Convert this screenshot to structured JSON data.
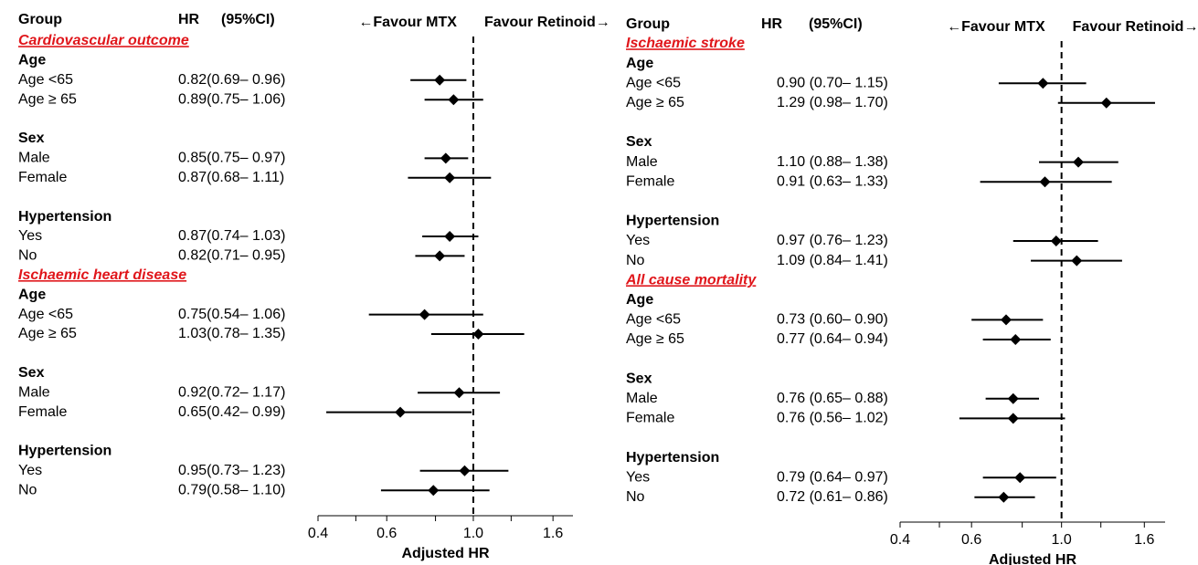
{
  "chart_data": [
    {
      "type": "forest",
      "headers": {
        "group": "Group",
        "hr": "HR",
        "ci": "(95%CI)"
      },
      "favour_left": "←Favour MTX",
      "favour_right": "Favour Retinoid→",
      "xlabel": "Adjusted HR",
      "log_scale": true,
      "xlim": [
        0.4,
        1.8
      ],
      "xticks": [
        0.4,
        0.6,
        {
          "value": 1,
          "label": "1.0"
        },
        1.6
      ],
      "minor_xticks": [
        0.5,
        0.8,
        1.25
      ],
      "ref_line": 1,
      "color": "#000000",
      "sections": [
        {
          "title": "Cardiovascular outcome",
          "groups": [
            {
              "name": "Age",
              "rows": [
                {
                  "label": "Age <65",
                  "hr": 0.82,
                  "lo": 0.69,
                  "hi": 0.96,
                  "text": "0.82(0.69– 0.96)"
                },
                {
                  "label": "Age ≥ 65",
                  "hr": 0.89,
                  "lo": 0.75,
                  "hi": 1.06,
                  "text": "0.89(0.75– 1.06)"
                }
              ]
            },
            {
              "name": "Sex",
              "rows": [
                {
                  "label": "Male",
                  "hr": 0.85,
                  "lo": 0.75,
                  "hi": 0.97,
                  "text": "0.85(0.75– 0.97)"
                },
                {
                  "label": "Female",
                  "hr": 0.87,
                  "lo": 0.68,
                  "hi": 1.11,
                  "text": "0.87(0.68– 1.11)"
                }
              ]
            },
            {
              "name": "Hypertension",
              "rows": [
                {
                  "label": "Yes",
                  "hr": 0.87,
                  "lo": 0.74,
                  "hi": 1.03,
                  "text": "0.87(0.74– 1.03)"
                },
                {
                  "label": "No",
                  "hr": 0.82,
                  "lo": 0.71,
                  "hi": 0.95,
                  "text": "0.82(0.71– 0.95)"
                }
              ]
            }
          ]
        },
        {
          "title": "Ischaemic heart disease",
          "groups": [
            {
              "name": "Age",
              "rows": [
                {
                  "label": "Age <65",
                  "hr": 0.75,
                  "lo": 0.54,
                  "hi": 1.06,
                  "text": "0.75(0.54– 1.06)"
                },
                {
                  "label": "Age ≥ 65",
                  "hr": 1.03,
                  "lo": 0.78,
                  "hi": 1.35,
                  "text": "1.03(0.78– 1.35)"
                }
              ]
            },
            {
              "name": "Sex",
              "rows": [
                {
                  "label": "Male",
                  "hr": 0.92,
                  "lo": 0.72,
                  "hi": 1.17,
                  "text": "0.92(0.72– 1.17)"
                },
                {
                  "label": "Female",
                  "hr": 0.65,
                  "lo": 0.42,
                  "hi": 0.99,
                  "text": "0.65(0.42– 0.99)"
                }
              ]
            },
            {
              "name": "Hypertension",
              "rows": [
                {
                  "label": "Yes",
                  "hr": 0.95,
                  "lo": 0.73,
                  "hi": 1.23,
                  "text": "0.95(0.73– 1.23)"
                },
                {
                  "label": "No",
                  "hr": 0.79,
                  "lo": 0.58,
                  "hi": 1.1,
                  "text": "0.79(0.58– 1.10)"
                }
              ]
            }
          ]
        }
      ]
    },
    {
      "type": "forest",
      "headers": {
        "group": "Group",
        "hr": "HR",
        "ci": "(95%CI)"
      },
      "favour_left": "←Favour MTX",
      "favour_right": "Favour Retinoid→",
      "xlabel": "Adjusted HR",
      "log_scale": true,
      "xlim": [
        0.4,
        1.8
      ],
      "xticks": [
        0.4,
        0.6,
        {
          "value": 1,
          "label": "1.0"
        },
        1.6
      ],
      "minor_xticks": [
        0.5,
        0.8,
        1.25
      ],
      "ref_line": 1,
      "color": "#000000",
      "sections": [
        {
          "title": "Ischaemic stroke",
          "groups": [
            {
              "name": "Age",
              "rows": [
                {
                  "label": "Age <65",
                  "hr": 0.9,
                  "lo": 0.7,
                  "hi": 1.15,
                  "text": "0.90 (0.70– 1.15)"
                },
                {
                  "label": "Age ≥ 65",
                  "hr": 1.29,
                  "lo": 0.98,
                  "hi": 1.7,
                  "text": "1.29 (0.98– 1.70)"
                }
              ]
            },
            {
              "name": "Sex",
              "rows": [
                {
                  "label": "Male",
                  "hr": 1.1,
                  "lo": 0.88,
                  "hi": 1.38,
                  "text": "1.10 (0.88– 1.38)"
                },
                {
                  "label": "Female",
                  "hr": 0.91,
                  "lo": 0.63,
                  "hi": 1.33,
                  "text": "0.91 (0.63– 1.33)"
                }
              ]
            },
            {
              "name": "Hypertension",
              "rows": [
                {
                  "label": "Yes",
                  "hr": 0.97,
                  "lo": 0.76,
                  "hi": 1.23,
                  "text": "0.97 (0.76– 1.23)"
                },
                {
                  "label": "No",
                  "hr": 1.09,
                  "lo": 0.84,
                  "hi": 1.41,
                  "text": "1.09 (0.84– 1.41)"
                }
              ]
            }
          ]
        },
        {
          "title": "All cause mortality",
          "groups": [
            {
              "name": "Age",
              "rows": [
                {
                  "label": "Age <65",
                  "hr": 0.73,
                  "lo": 0.6,
                  "hi": 0.9,
                  "text": "0.73 (0.60– 0.90)"
                },
                {
                  "label": "Age ≥ 65",
                  "hr": 0.77,
                  "lo": 0.64,
                  "hi": 0.94,
                  "text": "0.77 (0.64– 0.94)"
                }
              ]
            },
            {
              "name": "Sex",
              "rows": [
                {
                  "label": "Male",
                  "hr": 0.76,
                  "lo": 0.65,
                  "hi": 0.88,
                  "text": "0.76 (0.65– 0.88)"
                },
                {
                  "label": "Female",
                  "hr": 0.76,
                  "lo": 0.56,
                  "hi": 1.02,
                  "text": "0.76 (0.56– 1.02)"
                }
              ]
            },
            {
              "name": "Hypertension",
              "rows": [
                {
                  "label": "Yes",
                  "hr": 0.79,
                  "lo": 0.64,
                  "hi": 0.97,
                  "text": "0.79 (0.64– 0.97)"
                },
                {
                  "label": "No",
                  "hr": 0.72,
                  "lo": 0.61,
                  "hi": 0.86,
                  "text": "0.72 (0.61– 0.86)"
                }
              ]
            }
          ]
        }
      ]
    }
  ]
}
